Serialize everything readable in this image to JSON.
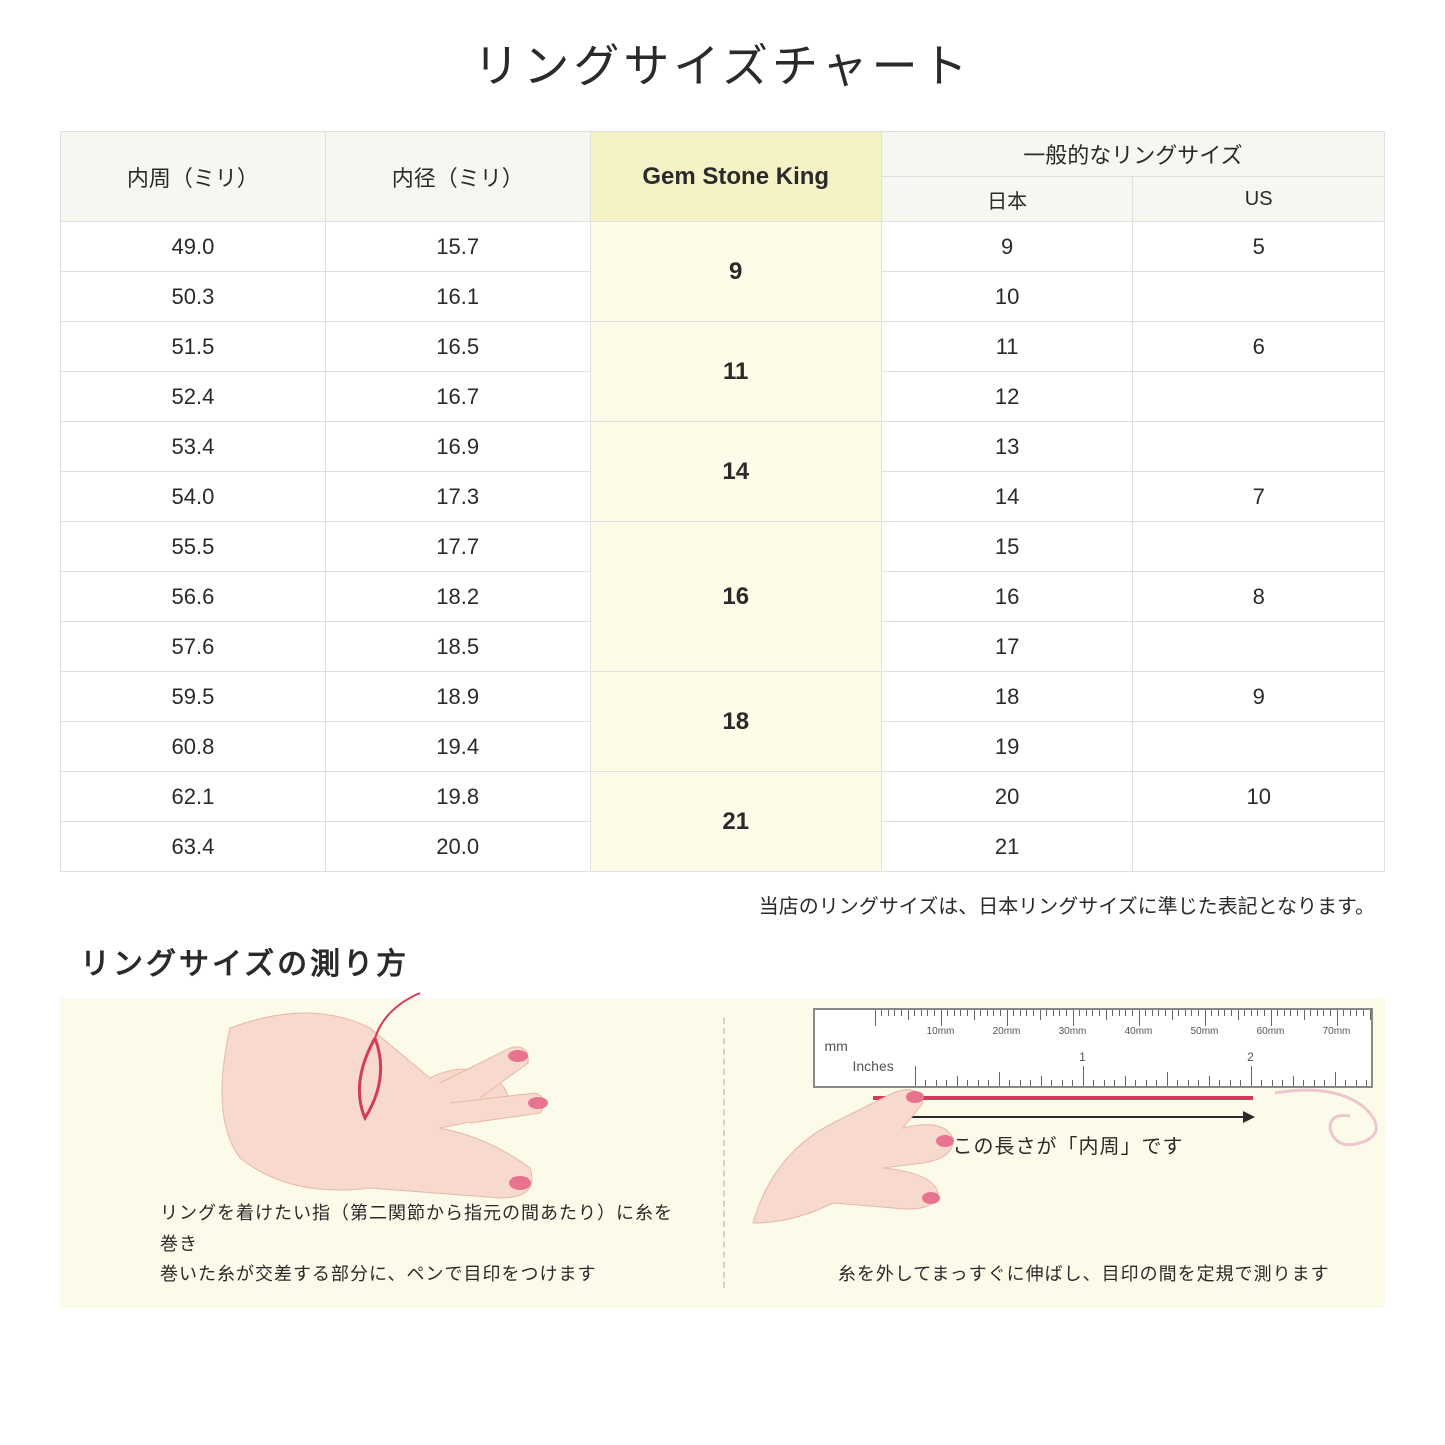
{
  "title": "リングサイズチャート",
  "table": {
    "headers": {
      "col1": "内周（ミリ）",
      "col2": "内径（ミリ）",
      "col3": "Gem Stone King",
      "col4_group": "一般的なリングサイズ",
      "col4a": "日本",
      "col4b": "US"
    },
    "groups": [
      {
        "gsk": "9",
        "rows": [
          {
            "c": "49.0",
            "d": "15.7",
            "jp": "9",
            "us": "5"
          },
          {
            "c": "50.3",
            "d": "16.1",
            "jp": "10",
            "us": ""
          }
        ]
      },
      {
        "gsk": "11",
        "rows": [
          {
            "c": "51.5",
            "d": "16.5",
            "jp": "11",
            "us": "6"
          },
          {
            "c": "52.4",
            "d": "16.7",
            "jp": "12",
            "us": ""
          }
        ]
      },
      {
        "gsk": "14",
        "rows": [
          {
            "c": "53.4",
            "d": "16.9",
            "jp": "13",
            "us": ""
          },
          {
            "c": "54.0",
            "d": "17.3",
            "jp": "14",
            "us": "7"
          }
        ]
      },
      {
        "gsk": "16",
        "rows": [
          {
            "c": "55.5",
            "d": "17.7",
            "jp": "15",
            "us": ""
          },
          {
            "c": "56.6",
            "d": "18.2",
            "jp": "16",
            "us": "8"
          },
          {
            "c": "57.6",
            "d": "18.5",
            "jp": "17",
            "us": ""
          }
        ]
      },
      {
        "gsk": "18",
        "rows": [
          {
            "c": "59.5",
            "d": "18.9",
            "jp": "18",
            "us": "9"
          },
          {
            "c": "60.8",
            "d": "19.4",
            "jp": "19",
            "us": ""
          }
        ]
      },
      {
        "gsk": "21",
        "rows": [
          {
            "c": "62.1",
            "d": "19.8",
            "jp": "20",
            "us": "10"
          },
          {
            "c": "63.4",
            "d": "20.0",
            "jp": "21",
            "us": ""
          }
        ]
      }
    ]
  },
  "note": "当店のリングサイズは、日本リングサイズに準じた表記となります。",
  "measure_title": "リングサイズの測り方",
  "left_caption_l1": "リングを着けたい指（第二関節から指元の間あたり）に糸を巻き",
  "left_caption_l2": "巻いた糸が交差する部分に、ペンで目印をつけます",
  "right_arrow_label": "この長さが「内周」です",
  "right_caption": "糸を外してまっすぐに伸ばし、目印の間を定規で測ります",
  "ruler": {
    "mm_label": "mm",
    "in_label": "Inches",
    "mm_marks": [
      "10mm",
      "20mm",
      "30mm",
      "40mm",
      "50mm",
      "60mm",
      "70mm"
    ],
    "in_marks": [
      "1",
      "2"
    ]
  },
  "colors": {
    "header_bg": "#f7f7f2",
    "gsk_header_bg": "#f5f2c5",
    "gsk_cell_bg": "#fdfce8",
    "border": "#e0e0e0",
    "panel_bg": "#fcfae9",
    "thread": "#d43b5a",
    "skin": "#f7d9ce",
    "nail": "#e8738f"
  }
}
